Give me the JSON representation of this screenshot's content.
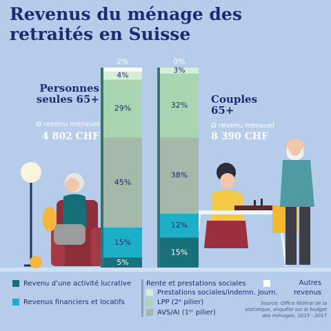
{
  "chart_data": {
    "type": "stacked-bar",
    "title": "Revenus du ménage des retraités en Suisse",
    "categories": [
      "Personnes seules 65+",
      "Couples 65+"
    ],
    "captions": [
      "Ø revenu mensuel",
      "Ø revenu mensuel"
    ],
    "amounts": [
      "4 802 CHF",
      "8 390 CHF"
    ],
    "ylim": [
      0,
      100
    ],
    "series": [
      {
        "name": "Revenu d’une activité lucrative",
        "color": "#17707a",
        "values": [
          5,
          15
        ],
        "value_labels": [
          "5%",
          "15%"
        ]
      },
      {
        "name": "Revenus financiers et locatifs",
        "color": "#1eafc8",
        "values": [
          15,
          12
        ],
        "value_labels": [
          "15%",
          "12%"
        ]
      },
      {
        "name": "AVS/AI (1ᵉʳ pilier)",
        "color": "#a4b9aa",
        "values": [
          45,
          38
        ],
        "value_labels": [
          "45%",
          "38%"
        ]
      },
      {
        "name": "LPP (2ᵉ pilier)",
        "color": "#a9d6b1",
        "values": [
          29,
          32
        ],
        "value_labels": [
          "29%",
          "32%"
        ]
      },
      {
        "name": "Prestations sociales/indemn. journ.",
        "color": "#d5eed7",
        "values": [
          4,
          3
        ],
        "value_labels": [
          "4%",
          "3%"
        ]
      },
      {
        "name": "Autres revenus",
        "color": "#ffffff",
        "values": [
          2,
          0
        ],
        "value_labels": [
          "2%",
          "0%"
        ]
      }
    ],
    "legend_group": "Rente et prestations sociales",
    "source": "Source: Office fédéral de la statistique, enquête sur le budget des ménages, 2015 - 2017"
  }
}
